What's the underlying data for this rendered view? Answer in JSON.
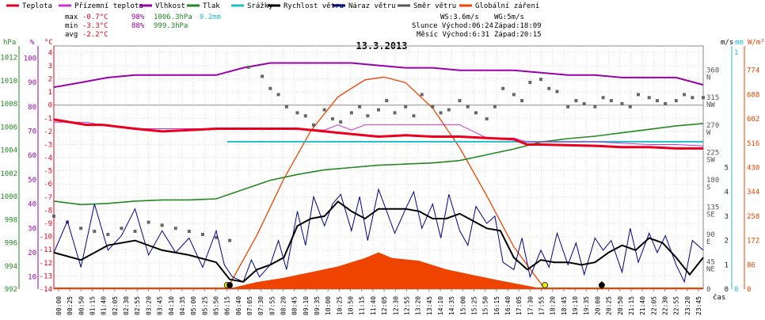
{
  "chart_data": {
    "type": "line",
    "title": "13.3.2013",
    "legend": [
      {
        "label": "Teplota",
        "color": "#e8001c"
      },
      {
        "label": "Přízemní teplota",
        "color": "#cc33cc"
      },
      {
        "label": "Vlhkost",
        "color": "#9900aa"
      },
      {
        "label": "Tlak",
        "color": "#228822"
      },
      {
        "label": "Srážky",
        "color": "#22bbcc"
      },
      {
        "label": "Rychlost větru",
        "color": "#000000"
      },
      {
        "label": "Náraz větru",
        "color": "#000088"
      },
      {
        "label": "Směr větru",
        "color": "#555555"
      },
      {
        "label": "Globální záření",
        "color": "#ee4400"
      }
    ],
    "stats": {
      "max": {
        "label": "max",
        "temp": "-0.7°C",
        "hum": "98%",
        "press": "1006.3hPa",
        "rain": "0.2mm"
      },
      "min": {
        "label": "min",
        "temp": "-3.3°C",
        "hum": "88%",
        "press": "999.3hPa"
      },
      "avg": {
        "label": "avg",
        "temp": "-2.2°C"
      }
    },
    "info": {
      "ws": "WS:3.6m/s",
      "wg": "WG:5m/s",
      "sun": "Slunce Východ:06:24",
      "sun_set": "Západ:18:09",
      "moon": "Měsíc Východ:6:31",
      "moon_set": "Západ:20:15"
    },
    "axes_left": {
      "hpa": {
        "unit": "hPa",
        "ticks": [
          "992",
          "994",
          "996",
          "998",
          "1000",
          "1002",
          "1004",
          "1006",
          "1008",
          "1010",
          "1012"
        ],
        "color": "#228822"
      },
      "pct": {
        "unit": "%",
        "ticks": [
          "10",
          "20",
          "30",
          "40",
          "50",
          "60",
          "70",
          "80",
          "90",
          "100"
        ],
        "color": "#9900aa"
      },
      "degc": {
        "unit": "°C",
        "ticks": [
          "-14",
          "-13",
          "-12",
          "-11",
          "-10",
          "-9",
          "-8",
          "-7",
          "-6",
          "-5",
          "-4",
          "-3",
          "-2",
          "-1",
          "0",
          "1",
          "2",
          "3",
          "4"
        ],
        "color": "#e8001c"
      }
    },
    "axes_right": {
      "dir": {
        "unit": "m/s",
        "labels": [
          {
            "deg": "360",
            "dir": "N"
          },
          {
            "deg": "315",
            "dir": "NW"
          },
          {
            "deg": "270",
            "dir": "W"
          },
          {
            "deg": "225",
            "dir": "SW"
          },
          {
            "deg": "180",
            "dir": "S"
          },
          {
            "deg": "135",
            "dir": "SE"
          },
          {
            "deg": "90",
            "dir": "E"
          },
          {
            "deg": "45",
            "dir": "NE"
          },
          {
            "deg": "0",
            "dir": ""
          }
        ]
      },
      "wind_ms": {
        "ticks": [
          "0",
          "1",
          "2",
          "3",
          "4",
          "5"
        ],
        "color": "#222222"
      },
      "mm": {
        "unit": "mm",
        "ticks": [
          "0",
          "1"
        ],
        "color": "#22bbcc"
      },
      "wm2": {
        "unit": "W/m²",
        "ticks": [
          "0",
          "86",
          "172",
          "258",
          "344",
          "430",
          "516",
          "602",
          "688",
          "774"
        ],
        "color": "#ee4400"
      }
    },
    "xlabel": "čas",
    "x_ticks": [
      "00:00",
      "00:25",
      "00:50",
      "01:15",
      "01:40",
      "02:05",
      "02:30",
      "02:55",
      "03:20",
      "03:45",
      "04:10",
      "04:35",
      "05:00",
      "05:25",
      "05:50",
      "06:15",
      "06:40",
      "07:05",
      "07:30",
      "07:55",
      "08:20",
      "08:45",
      "09:10",
      "09:35",
      "10:00",
      "10:25",
      "10:50",
      "11:15",
      "11:40",
      "12:05",
      "12:30",
      "12:55",
      "13:20",
      "13:45",
      "14:10",
      "14:35",
      "15:00",
      "15:25",
      "15:50",
      "16:15",
      "16:40",
      "17:05",
      "17:30",
      "17:55",
      "18:20",
      "18:45",
      "19:10",
      "19:35",
      "20:00",
      "20:25",
      "20:50",
      "21:15",
      "21:40",
      "22:05",
      "22:30",
      "22:55",
      "23:20",
      "23:45"
    ],
    "series": {
      "temperature_c": {
        "t": [
          0,
          1.2,
          1.8,
          3,
          4,
          5,
          6,
          7,
          8,
          9,
          10,
          11,
          12,
          13,
          14,
          15,
          16,
          17,
          17.5,
          18,
          20,
          21,
          22,
          23,
          24
        ],
        "v": [
          -1.1,
          -1.5,
          -1.5,
          -1.8,
          -2.0,
          -1.9,
          -1.8,
          -1.8,
          -1.8,
          -1.8,
          -2.0,
          -2.2,
          -2.4,
          -2.3,
          -2.4,
          -2.4,
          -2.5,
          -2.6,
          -3.0,
          -3.0,
          -3.1,
          -3.2,
          -3.2,
          -3.3,
          -3.3
        ]
      },
      "ground_temp_c": {
        "t": [
          0,
          1.2,
          2,
          3,
          4,
          5,
          6,
          7,
          8,
          9,
          10,
          10.5,
          11,
          11.5,
          12,
          13,
          14,
          15,
          16,
          17,
          17.5,
          18,
          19,
          20,
          21,
          22,
          23,
          24
        ],
        "v": [
          -1.3,
          -1.3,
          -1.6,
          -1.8,
          -1.8,
          -1.8,
          -1.8,
          -1.8,
          -1.8,
          -1.8,
          -1.9,
          -1.5,
          -1.9,
          -1.5,
          -1.5,
          -1.5,
          -1.5,
          -1.5,
          -2.5,
          -2.5,
          -2.8,
          -2.8,
          -2.8,
          -2.8,
          -2.9,
          -3.0,
          -3.0,
          -3.1
        ]
      },
      "humidity_pct": {
        "t": [
          0,
          1,
          2,
          3,
          4,
          5,
          6,
          7,
          8,
          9,
          10,
          11,
          12,
          13,
          14,
          15,
          16,
          17,
          18,
          19,
          20,
          21,
          22,
          23,
          24
        ],
        "v": [
          88,
          90,
          92,
          93,
          93,
          93,
          93,
          96,
          98,
          98,
          98,
          98,
          97,
          96,
          96,
          95,
          95,
          95,
          94,
          93,
          93,
          92,
          92,
          92,
          89
        ]
      },
      "pressure_hpa": {
        "t": [
          0,
          1,
          2,
          3,
          4,
          5,
          6,
          7,
          8,
          9,
          10,
          11,
          12,
          13,
          14,
          15,
          16,
          17,
          18,
          19,
          20,
          21,
          22,
          23,
          24
        ],
        "v": [
          999.6,
          999.3,
          999.4,
          999.6,
          999.7,
          999.7,
          999.8,
          1000.6,
          1001.4,
          1001.9,
          1002.3,
          1002.5,
          1002.7,
          1002.8,
          1002.9,
          1003.1,
          1003.6,
          1004.1,
          1004.7,
          1005.0,
          1005.2,
          1005.5,
          1005.8,
          1006.1,
          1006.3
        ]
      },
      "rain_mm": {
        "t": [
          6.4,
          24
        ],
        "v": [
          0.2,
          0.2
        ]
      },
      "radiation_wm2": {
        "t": [
          6.4,
          7.5,
          8.5,
          9.5,
          10.5,
          11.5,
          12,
          12.5,
          13.5,
          14.5,
          15.5,
          16.5,
          17.5,
          18.15
        ],
        "v": [
          0,
          25,
          40,
          60,
          80,
          110,
          130,
          110,
          100,
          70,
          50,
          30,
          12,
          0
        ]
      },
      "clear_sky_wm2": {
        "t": [
          6.4,
          7.5,
          8.5,
          9.5,
          10.5,
          11.5,
          12.2,
          13,
          14,
          15,
          16,
          17,
          18.15
        ],
        "v": [
          0,
          190,
          390,
          560,
          680,
          740,
          750,
          730,
          640,
          500,
          330,
          150,
          0
        ]
      },
      "wind_ms": {
        "t": [
          0,
          1,
          2,
          3,
          4,
          5,
          6,
          6.5,
          7,
          7.5,
          8,
          8.5,
          9,
          9.5,
          10,
          10.5,
          11,
          11.5,
          12,
          12.5,
          13,
          13.5,
          14,
          14.5,
          15,
          15.5,
          16,
          16.5,
          17,
          17.5,
          18,
          18.5,
          19,
          19.5,
          20,
          20.5,
          21,
          21.5,
          22,
          22.5,
          23,
          23.5,
          24
        ],
        "v": [
          1.5,
          1.2,
          1.8,
          2.0,
          1.6,
          1.4,
          1.1,
          0.4,
          0.3,
          0.8,
          1.0,
          1.3,
          2.6,
          2.9,
          3.0,
          3.6,
          3.2,
          2.9,
          3.3,
          3.3,
          3.3,
          3.2,
          2.9,
          2.9,
          3.1,
          2.8,
          2.5,
          2.4,
          1.3,
          0.8,
          1.2,
          1.1,
          1.1,
          1.0,
          1.1,
          1.5,
          1.8,
          1.6,
          2.1,
          1.9,
          1.3,
          0.6,
          1.3
        ]
      },
      "gust_ms": {
        "t": [
          0,
          0.5,
          1,
          1.5,
          2,
          2.5,
          3,
          3.5,
          4,
          4.5,
          5,
          5.5,
          6,
          6.3,
          6.6,
          7,
          7.3,
          7.6,
          8,
          8.3,
          8.6,
          9,
          9.3,
          9.6,
          10,
          10.3,
          10.6,
          11,
          11.3,
          11.6,
          12,
          12.3,
          12.6,
          13,
          13.3,
          13.6,
          14,
          14.3,
          14.6,
          15,
          15.3,
          15.6,
          16,
          16.3,
          16.6,
          17,
          17.3,
          17.6,
          18,
          18.3,
          18.6,
          19,
          19.3,
          19.6,
          20,
          20.3,
          20.6,
          21,
          21.3,
          21.6,
          22,
          22.3,
          22.6,
          23,
          23.3,
          23.6,
          24
        ],
        "v": [
          1.5,
          2.8,
          0.9,
          3.5,
          1.6,
          2.2,
          3.3,
          1.4,
          2.4,
          1.5,
          2.1,
          0.9,
          2.4,
          1.0,
          0.5,
          0.3,
          1.2,
          0.5,
          1.0,
          2.0,
          0.8,
          3.2,
          1.8,
          3.8,
          2.6,
          3.5,
          3.9,
          2.4,
          3.8,
          2.0,
          4.1,
          3.2,
          2.3,
          3.3,
          4.0,
          2.5,
          3.5,
          2.1,
          3.9,
          2.4,
          1.8,
          3.4,
          2.7,
          3.0,
          1.1,
          0.8,
          2.1,
          0.5,
          1.6,
          0.9,
          2.3,
          1.0,
          1.9,
          0.6,
          2.1,
          1.6,
          2.0,
          0.7,
          2.5,
          1.1,
          2.3,
          1.5,
          2.2,
          1.0,
          0.3,
          2.0,
          1.6
        ]
      },
      "wind_dir_deg": {
        "t": [
          0,
          0.5,
          1,
          1.5,
          2,
          2.5,
          3,
          3.5,
          4,
          4.5,
          5,
          5.5,
          6,
          6.5,
          7.2,
          7.7,
          8,
          8.3,
          8.6,
          9,
          9.3,
          9.6,
          10,
          10.3,
          10.6,
          11,
          11.3,
          11.6,
          12,
          12.3,
          12.6,
          13,
          13.3,
          13.6,
          14,
          14.3,
          14.6,
          15,
          15.3,
          15.6,
          16,
          16.3,
          16.6,
          17,
          17.3,
          17.6,
          18,
          18.3,
          18.6,
          19,
          19.3,
          19.6,
          20,
          20.3,
          20.6,
          21,
          21.3,
          21.6,
          22,
          22.3,
          22.6,
          23,
          23.3,
          23.6,
          24
        ],
        "v": [
          120,
          110,
          100,
          95,
          90,
          100,
          95,
          110,
          105,
          100,
          95,
          90,
          85,
          80,
          365,
          350,
          330,
          320,
          300,
          290,
          285,
          270,
          295,
          280,
          275,
          290,
          300,
          285,
          295,
          310,
          290,
          300,
          285,
          320,
          300,
          290,
          295,
          310,
          300,
          290,
          280,
          300,
          330,
          320,
          310,
          340,
          345,
          330,
          325,
          300,
          310,
          305,
          300,
          315,
          310,
          305,
          300,
          320,
          315,
          310,
          305,
          310,
          320,
          315,
          315
        ]
      }
    },
    "markers": [
      {
        "t": 6.4,
        "kind": "sunrise",
        "color": "#e8e800"
      },
      {
        "t": 18.15,
        "kind": "sunset",
        "color": "#e8e800"
      },
      {
        "t": 6.5,
        "kind": "moonrise",
        "color": "#000000"
      },
      {
        "t": 20.25,
        "kind": "moonset",
        "color": "#000000"
      }
    ]
  }
}
